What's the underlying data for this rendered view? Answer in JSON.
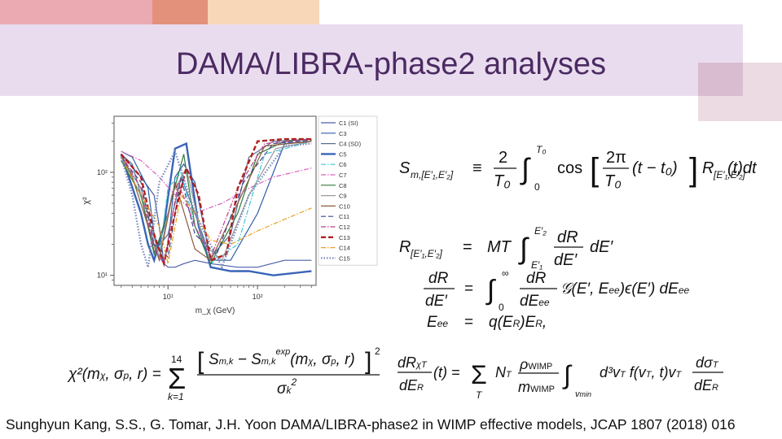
{
  "slide": {
    "title": "DAMA/LIBRA-phase2 analyses",
    "citation": "Sunghyun Kang, S.S., G. Tomar, J.H. Yoon  DAMA/LIBRA-phase2 in WIMP effective models, JCAP 1807 (2018) 016",
    "colors": {
      "title": "#4b2a62",
      "band": "#e9dcef",
      "accent_pink": "#e8a4ad",
      "accent_orange": "#e89a82",
      "accent_peach": "#f6d4b4",
      "accent_mauve": "#d9bcd0"
    }
  },
  "chart_data": {
    "type": "line",
    "xlabel": "m_χ (GeV)",
    "ylabel": "χ²",
    "xscale": "log",
    "yscale": "log",
    "x_ticks": [
      "10¹",
      "10²"
    ],
    "y_ticks": [
      "10¹",
      "10²"
    ],
    "legend_position": "right",
    "series": [
      {
        "name": "C1 (SI)",
        "color": "#4b5fa8",
        "style": "solid",
        "x": [
          3,
          5,
          7,
          8,
          9,
          10,
          12,
          15,
          20,
          30,
          60,
          100,
          200,
          400
        ],
        "y": [
          150,
          90,
          60,
          30,
          13,
          12,
          12,
          13,
          14,
          13,
          12,
          12,
          14,
          14
        ]
      },
      {
        "name": "C3",
        "color": "#2d5ea8",
        "style": "solid",
        "x": [
          3,
          4,
          6,
          7,
          9,
          10,
          12,
          15,
          20,
          30,
          50,
          100,
          200,
          400
        ],
        "y": [
          160,
          140,
          70,
          25,
          13,
          20,
          90,
          120,
          80,
          14,
          14,
          40,
          190,
          200
        ]
      },
      {
        "name": "C4 (SD)",
        "color": "#5a6e96",
        "style": "solid",
        "x": [
          3,
          4,
          5,
          7,
          10,
          14,
          20,
          30,
          50,
          80,
          150,
          400
        ],
        "y": [
          150,
          120,
          60,
          17,
          25,
          90,
          40,
          15,
          25,
          140,
          200,
          210
        ]
      },
      {
        "name": "C5",
        "color": "#3a64b8",
        "style": "solid",
        "x": [
          3,
          5,
          6,
          7,
          9,
          12,
          16,
          22,
          30,
          50,
          80,
          150,
          400
        ],
        "y": [
          150,
          40,
          20,
          14,
          30,
          170,
          190,
          30,
          12,
          11,
          11,
          10,
          11
        ]
      },
      {
        "name": "C6",
        "color": "#39c6d6",
        "style": "dashdot",
        "x": [
          3,
          4,
          6,
          8,
          10,
          14,
          20,
          30,
          60,
          120,
          400
        ],
        "y": [
          130,
          90,
          40,
          15,
          70,
          100,
          30,
          13,
          20,
          150,
          200
        ]
      },
      {
        "name": "C7",
        "color": "#d95fc0",
        "style": "dashdot",
        "x": [
          3,
          5,
          8,
          12,
          20,
          40,
          80,
          150,
          400
        ],
        "y": [
          160,
          130,
          90,
          60,
          40,
          50,
          70,
          90,
          110
        ]
      },
      {
        "name": "C8",
        "color": "#2f7a3c",
        "style": "solid",
        "x": [
          3,
          5,
          7,
          10,
          15,
          20,
          30,
          60,
          100,
          200,
          400
        ],
        "y": [
          130,
          60,
          16,
          40,
          150,
          30,
          13,
          40,
          150,
          200,
          210
        ]
      },
      {
        "name": "C9",
        "color": "#999999",
        "style": "solid",
        "x": [
          3,
          5,
          8,
          11,
          16,
          25,
          40,
          80,
          160,
          400
        ],
        "y": [
          140,
          70,
          15,
          60,
          110,
          20,
          14,
          60,
          170,
          200
        ]
      },
      {
        "name": "C10",
        "color": "#8a5a3c",
        "style": "solid",
        "x": [
          3,
          4,
          6,
          8,
          12,
          20,
          30,
          60,
          120,
          400
        ],
        "y": [
          150,
          90,
          30,
          14,
          80,
          18,
          14,
          50,
          180,
          200
        ]
      },
      {
        "name": "C11",
        "color": "#3c4a8a",
        "style": "dashed",
        "x": [
          3,
          5,
          7,
          10,
          14,
          20,
          35,
          70,
          150,
          400
        ],
        "y": [
          140,
          80,
          20,
          15,
          90,
          25,
          16,
          80,
          190,
          205
        ]
      },
      {
        "name": "C12",
        "color": "#c03c8a",
        "style": "dashdot",
        "x": [
          3,
          5,
          7,
          9,
          13,
          20,
          30,
          60,
          120,
          400
        ],
        "y": [
          150,
          70,
          18,
          13,
          80,
          30,
          15,
          70,
          190,
          210
        ]
      },
      {
        "name": "C13",
        "color": "#b02020",
        "style": "dashed",
        "x": [
          3,
          5,
          7,
          9,
          12,
          16,
          22,
          30,
          45,
          60,
          100,
          200,
          400
        ],
        "y": [
          150,
          90,
          25,
          13,
          40,
          110,
          60,
          14,
          16,
          70,
          200,
          210,
          210
        ]
      },
      {
        "name": "C14",
        "color": "#e8a020",
        "style": "dashdot",
        "x": [
          3,
          5,
          8,
          10,
          14,
          20,
          30,
          50,
          100,
          200,
          400
        ],
        "y": [
          140,
          60,
          30,
          13,
          60,
          40,
          22,
          20,
          27,
          35,
          45
        ]
      },
      {
        "name": "C15",
        "color": "#7a8cbf",
        "style": "dotted",
        "x": [
          3,
          4,
          5,
          6,
          8,
          12,
          20,
          40,
          80,
          200,
          400
        ],
        "y": [
          140,
          60,
          20,
          12,
          80,
          160,
          40,
          12,
          60,
          180,
          190
        ]
      }
    ]
  },
  "equations": {
    "eq1": "S_{m,[E'1,E'2]} = (2/T0) ∫_0^{T0} cos[(2π/T0)(t − t0)] R_{[E'1,E'2]}(t) dt",
    "eq2": "R_{[E'1,E'2]} = MT ∫_{E'1}^{E'2} dR/dE' dE'",
    "eq3": "dR/dE' = ∫_0^∞ dR/dE_ee 𝒢(E', E_ee) ε(E') dE_ee",
    "eq4": "E_ee = q(E_R) E_R,",
    "eq5": "χ²(m_χ, σ_p, r) = Σ_{k=1}^{14} [S_{m,k} − S^{exp}_{m,k}(m_χ, σ_p, r)]² / σ_k²",
    "eq6": "dR_χT/dE_R (t) = Σ_T N_T (ρ_WIMP/m_WIMP) ∫_{v_min} d³v_T f(v_T, t) v_T dσ_T/dE_R"
  }
}
